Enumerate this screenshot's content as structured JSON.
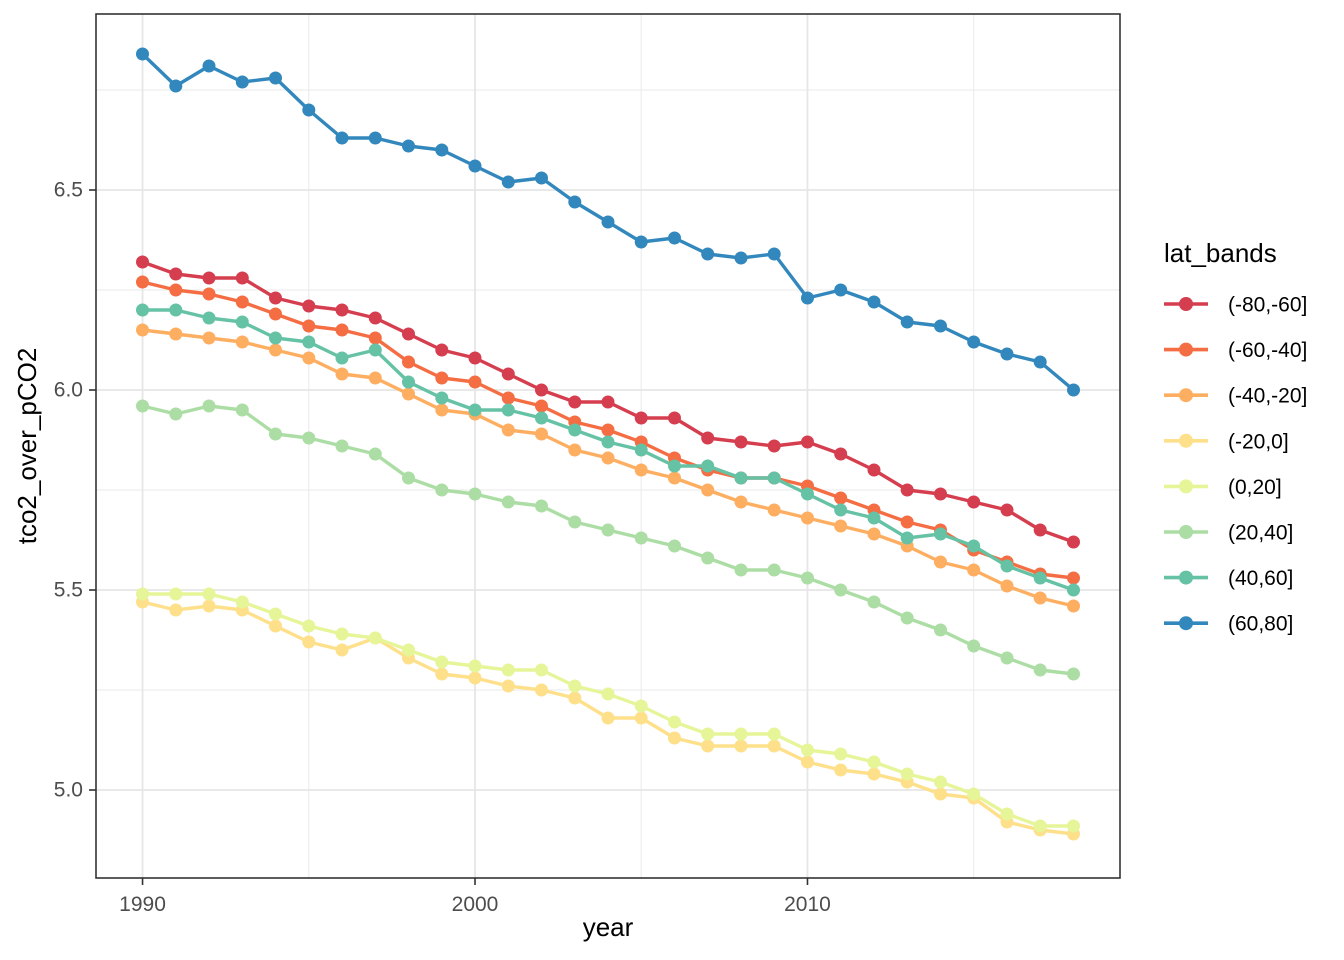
{
  "figure": {
    "xlabel": "year",
    "ylabel": "tco2_over_pCO2",
    "legend_title": "lat_bands"
  },
  "theme": {
    "background": "#ffffff",
    "panel_border": "#333333",
    "grid_major": "#e6e6e6",
    "grid_minor": "#ededed",
    "tick_color": "#333333",
    "tick_label_color": "#4d4d4d",
    "title_color": "#000000"
  },
  "chart_data": {
    "type": "line",
    "xlabel": "year",
    "ylabel": "tco2_over_pCO2",
    "legend_title": "lat_bands",
    "legend_position": "right",
    "grid": true,
    "xlim": [
      1988.6,
      2019.4
    ],
    "ylim": [
      4.78,
      6.94
    ],
    "xticks": [
      1990,
      2000,
      2010
    ],
    "xtick_labels": [
      "1990",
      "2000",
      "2010"
    ],
    "xminor": [
      1995,
      2005,
      2015
    ],
    "yticks": [
      5.0,
      5.5,
      6.0,
      6.5
    ],
    "ytick_labels": [
      "5.0",
      "5.5",
      "6.0",
      "6.5"
    ],
    "yminor": [
      5.25,
      5.75,
      6.25,
      6.75
    ],
    "x": [
      1990,
      1991,
      1992,
      1993,
      1994,
      1995,
      1996,
      1997,
      1998,
      1999,
      2000,
      2001,
      2002,
      2003,
      2004,
      2005,
      2006,
      2007,
      2008,
      2009,
      2010,
      2011,
      2012,
      2013,
      2014,
      2015,
      2016,
      2017,
      2018
    ],
    "series": [
      {
        "name": "(-80,-60]",
        "color": "#d53e4f",
        "values": [
          6.32,
          6.29,
          6.28,
          6.28,
          6.23,
          6.21,
          6.2,
          6.18,
          6.14,
          6.1,
          6.08,
          6.04,
          6.0,
          5.97,
          5.97,
          5.93,
          5.93,
          5.88,
          5.87,
          5.86,
          5.87,
          5.84,
          5.8,
          5.75,
          5.74,
          5.72,
          5.7,
          5.65,
          5.62
        ]
      },
      {
        "name": "(-60,-40]",
        "color": "#f46d43",
        "values": [
          6.27,
          6.25,
          6.24,
          6.22,
          6.19,
          6.16,
          6.15,
          6.13,
          6.07,
          6.03,
          6.02,
          5.98,
          5.96,
          5.92,
          5.9,
          5.87,
          5.83,
          5.8,
          5.78,
          5.78,
          5.76,
          5.73,
          5.7,
          5.67,
          5.65,
          5.6,
          5.57,
          5.54,
          5.53
        ]
      },
      {
        "name": "(-40,-20]",
        "color": "#fdae61",
        "values": [
          6.15,
          6.14,
          6.13,
          6.12,
          6.1,
          6.08,
          6.04,
          6.03,
          5.99,
          5.95,
          5.94,
          5.9,
          5.89,
          5.85,
          5.83,
          5.8,
          5.78,
          5.75,
          5.72,
          5.7,
          5.68,
          5.66,
          5.64,
          5.61,
          5.57,
          5.55,
          5.51,
          5.48,
          5.46
        ]
      },
      {
        "name": "(-20,0]",
        "color": "#fee08b",
        "values": [
          5.47,
          5.45,
          5.46,
          5.45,
          5.41,
          5.37,
          5.35,
          5.38,
          5.33,
          5.29,
          5.28,
          5.26,
          5.25,
          5.23,
          5.18,
          5.18,
          5.13,
          5.11,
          5.11,
          5.11,
          5.07,
          5.05,
          5.04,
          5.02,
          4.99,
          4.98,
          4.92,
          4.9,
          4.89
        ]
      },
      {
        "name": "(0,20]",
        "color": "#e6f598",
        "values": [
          5.49,
          5.49,
          5.49,
          5.47,
          5.44,
          5.41,
          5.39,
          5.38,
          5.35,
          5.32,
          5.31,
          5.3,
          5.3,
          5.26,
          5.24,
          5.21,
          5.17,
          5.14,
          5.14,
          5.14,
          5.1,
          5.09,
          5.07,
          5.04,
          5.02,
          4.99,
          4.94,
          4.91,
          4.91
        ]
      },
      {
        "name": "(20,40]",
        "color": "#abdda4",
        "values": [
          5.96,
          5.94,
          5.96,
          5.95,
          5.89,
          5.88,
          5.86,
          5.84,
          5.78,
          5.75,
          5.74,
          5.72,
          5.71,
          5.67,
          5.65,
          5.63,
          5.61,
          5.58,
          5.55,
          5.55,
          5.53,
          5.5,
          5.47,
          5.43,
          5.4,
          5.36,
          5.33,
          5.3,
          5.29
        ]
      },
      {
        "name": "(40,60]",
        "color": "#66c2a5",
        "values": [
          6.2,
          6.2,
          6.18,
          6.17,
          6.13,
          6.12,
          6.08,
          6.1,
          6.02,
          5.98,
          5.95,
          5.95,
          5.93,
          5.9,
          5.87,
          5.85,
          5.81,
          5.81,
          5.78,
          5.78,
          5.74,
          5.7,
          5.68,
          5.63,
          5.64,
          5.61,
          5.56,
          5.53,
          5.5
        ]
      },
      {
        "name": "(60,80]",
        "color": "#3288bd",
        "values": [
          6.84,
          6.76,
          6.81,
          6.77,
          6.78,
          6.7,
          6.63,
          6.63,
          6.61,
          6.6,
          6.56,
          6.52,
          6.53,
          6.47,
          6.42,
          6.37,
          6.38,
          6.34,
          6.33,
          6.34,
          6.23,
          6.25,
          6.22,
          6.17,
          6.16,
          6.12,
          6.09,
          6.07,
          6.0
        ]
      }
    ]
  }
}
